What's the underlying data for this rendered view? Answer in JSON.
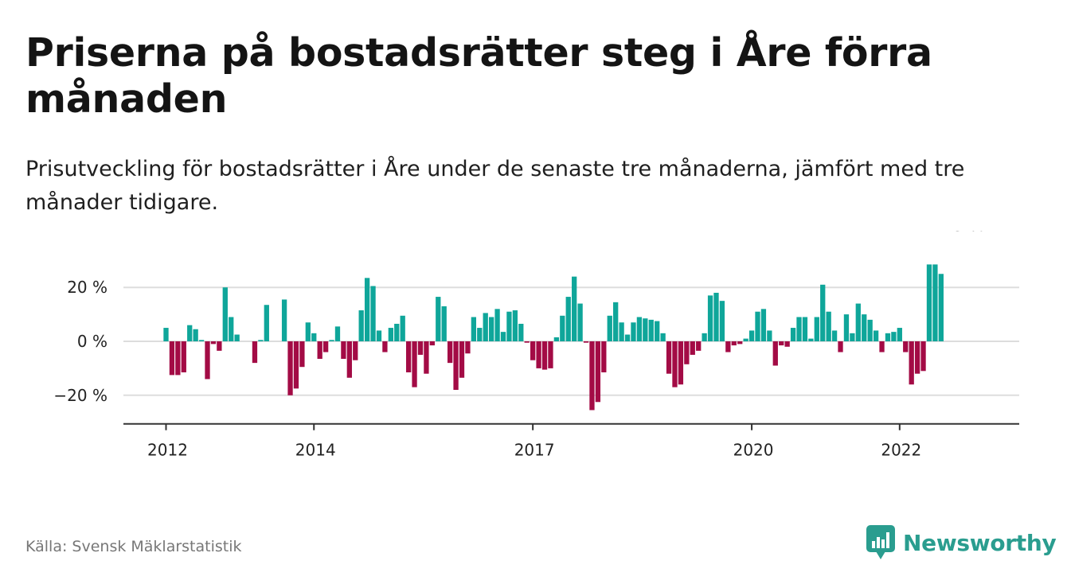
{
  "title": "Priserna på bostadsrätter steg i Åre förra månaden",
  "subtitle": "Prisutveckling för bostadsrätter i Åre under de senaste tre månaderna, jämfört med tre månader tidigare.",
  "source": "Källa: Svensk Mäklarstatistik",
  "brand": {
    "name": "Newsworthy",
    "icon": "newsworthy-logo-icon"
  },
  "colors": {
    "positive": "#0fa69a",
    "negative": "#a30b45",
    "grid": "#dddddd",
    "axis": "#333333",
    "brand": "#2a9d8f"
  },
  "chart_data": {
    "type": "bar",
    "unit": "%",
    "ylim": [
      -30,
      30
    ],
    "y_ticks": [
      {
        "value": 20,
        "label": "20 %"
      },
      {
        "value": 0,
        "label": "0 %"
      },
      {
        "value": -20,
        "label": "−20 %"
      }
    ],
    "x_ticks": [
      {
        "index": 0,
        "label": "2012"
      },
      {
        "index": 25,
        "label": "2014"
      },
      {
        "index": 62,
        "label": "2017"
      },
      {
        "index": 99,
        "label": "2020"
      },
      {
        "index": 124,
        "label": "2022"
      }
    ],
    "grid": true,
    "annotation": {
      "index": 137,
      "label": "25 %"
    },
    "values": [
      5,
      -12.5,
      -12.5,
      -11.5,
      6,
      4.5,
      0.5,
      -14,
      -1,
      -3.5,
      20,
      9,
      2.5,
      0,
      0,
      -8,
      0.5,
      13.5,
      0,
      0,
      15.5,
      -20,
      -17.5,
      -9.5,
      7,
      3,
      -6.5,
      -4,
      0.5,
      5.5,
      -6.5,
      -13.5,
      -7,
      11.5,
      23.5,
      20.5,
      4,
      -4,
      5,
      6.5,
      9.5,
      -11.5,
      -17,
      -5,
      -12,
      -1.5,
      16.5,
      13,
      -8,
      -18,
      -13.5,
      -4.5,
      9,
      5,
      10.5,
      9,
      12,
      3.5,
      11,
      11.5,
      6.5,
      -0.5,
      -7,
      -10,
      -10.5,
      -10,
      1.5,
      9.5,
      16.5,
      24,
      14,
      -0.5,
      -25.5,
      -22.5,
      -11.5,
      9.5,
      14.5,
      7,
      2.5,
      7,
      9,
      8.5,
      8,
      7.5,
      3,
      -12,
      -17,
      -16,
      -8.5,
      -5,
      -3.5,
      3,
      17,
      18,
      15,
      -4,
      -1.5,
      -1,
      1,
      4,
      11,
      12,
      4,
      -9,
      -1.5,
      -2,
      5,
      9,
      9,
      1,
      9,
      21,
      11,
      4,
      -4,
      10,
      3,
      14,
      10,
      8,
      4,
      -4,
      3,
      3.5,
      5,
      -4,
      -16,
      -12,
      -11,
      28.5,
      28.5,
      25
    ]
  }
}
